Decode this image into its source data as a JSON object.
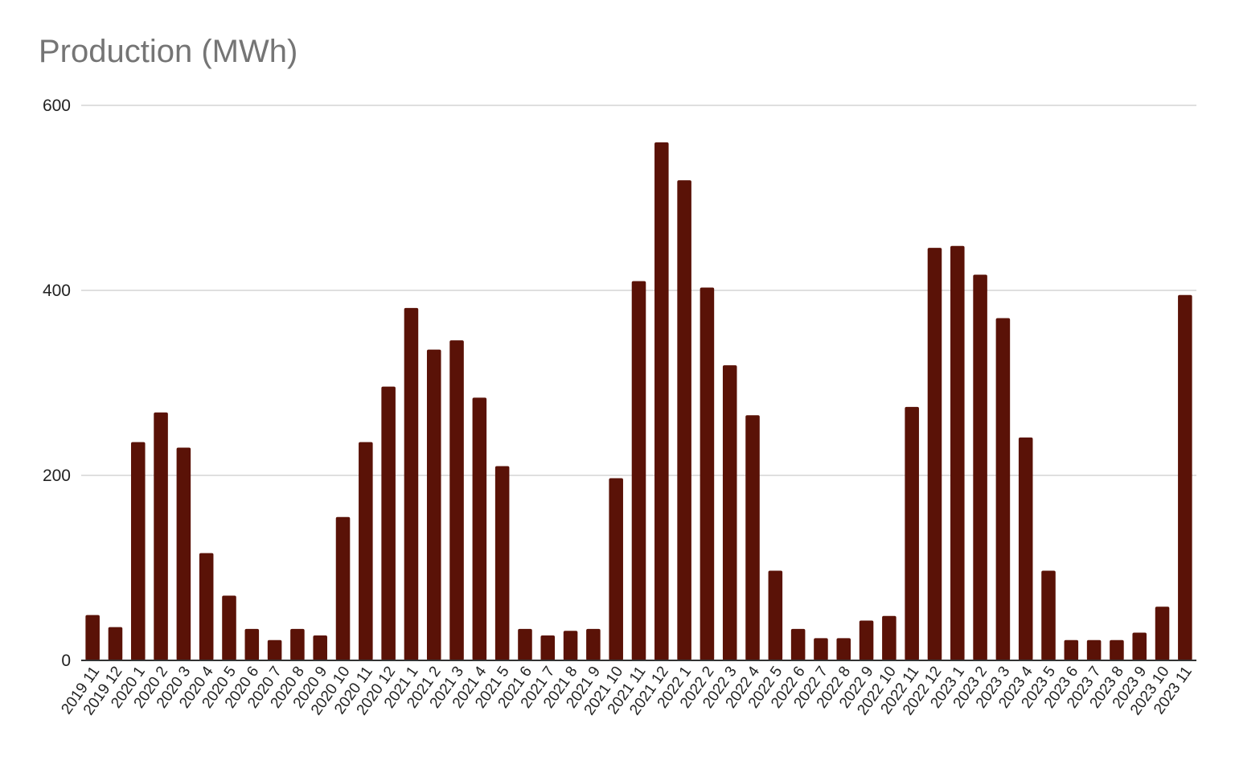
{
  "chart_data": {
    "type": "bar",
    "title": "Production (MWh)",
    "xlabel": "",
    "ylabel": "",
    "ylim": [
      0,
      600
    ],
    "yticks": [
      0,
      200,
      400,
      600
    ],
    "grid": true,
    "legend": "none",
    "bar_color": "#5a1207",
    "grid_color": "#cccccc",
    "axis_color": "#333333",
    "title_color": "#757575",
    "categories": [
      "2019 11",
      "2019 12",
      "2020 1",
      "2020 2",
      "2020 3",
      "2020 4",
      "2020 5",
      "2020 6",
      "2020 7",
      "2020 8",
      "2020 9",
      "2020 10",
      "2020 11",
      "2020 12",
      "2021 1",
      "2021 2",
      "2021 3",
      "2021 4",
      "2021 5",
      "2021 6",
      "2021 7",
      "2021 8",
      "2021 9",
      "2021 10",
      "2021 11",
      "2021 12",
      "2022 1",
      "2022 2",
      "2022 3",
      "2022 4",
      "2022 5",
      "2022 6",
      "2022 7",
      "2022 8",
      "2022 9",
      "2022 10",
      "2022 11",
      "2022 12",
      "2023 1",
      "2023 2",
      "2023 3",
      "2023 4",
      "2023 5",
      "2023 6",
      "2023 7",
      "2023 8",
      "2023 9",
      "2023 10",
      "2023 11"
    ],
    "values": [
      49,
      36,
      236,
      268,
      230,
      116,
      70,
      34,
      22,
      34,
      27,
      155,
      236,
      296,
      381,
      336,
      346,
      284,
      210,
      34,
      27,
      32,
      34,
      197,
      410,
      560,
      519,
      403,
      319,
      265,
      97,
      34,
      24,
      24,
      43,
      48,
      274,
      446,
      448,
      417,
      370,
      241,
      97,
      22,
      22,
      22,
      30,
      58,
      395
    ]
  }
}
